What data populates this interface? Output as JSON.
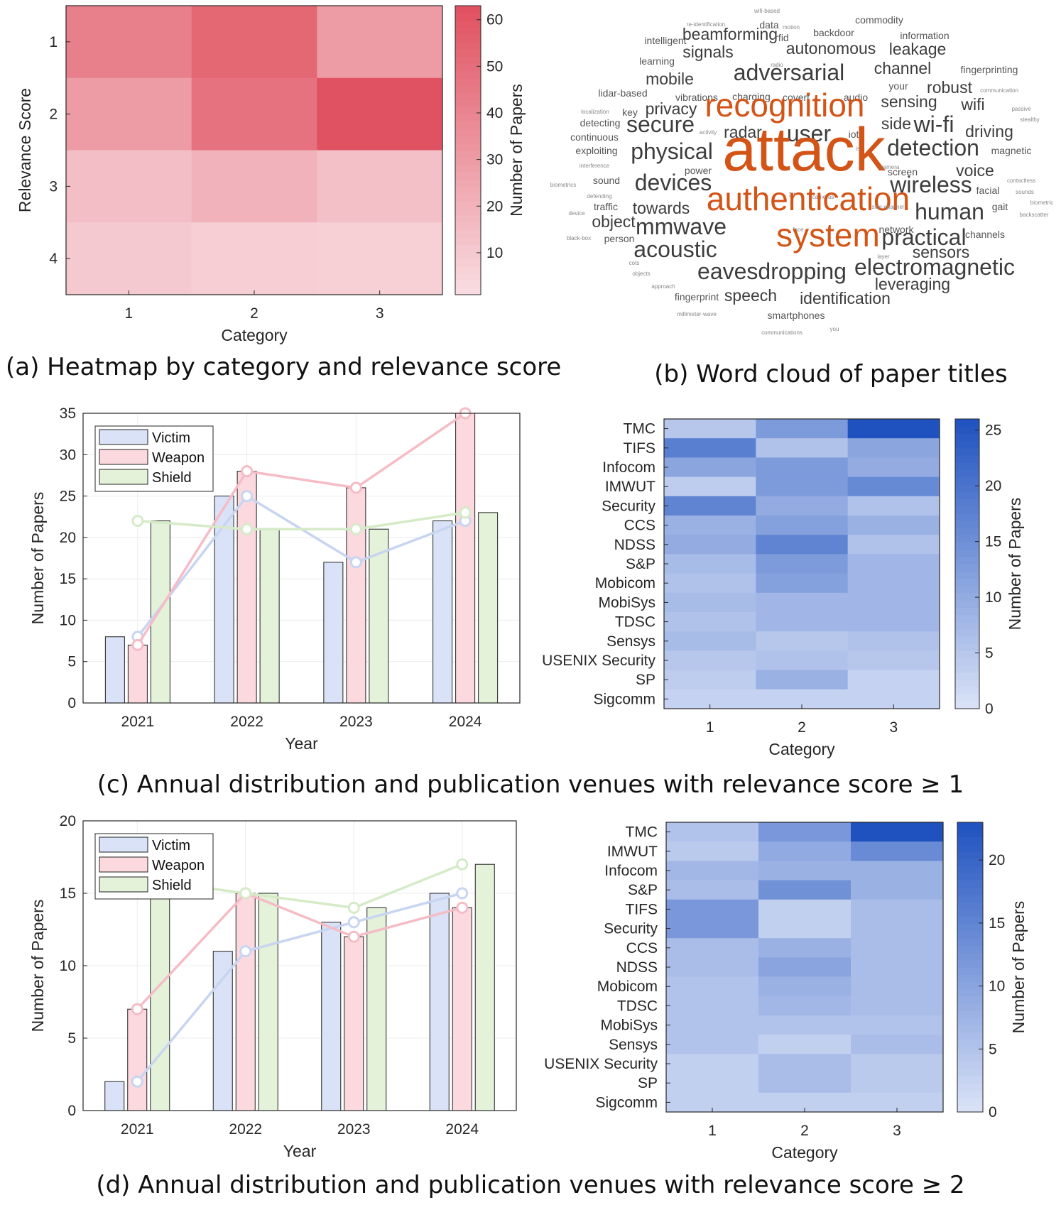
{
  "captions": {
    "a": "(a) Heatmap by category and relevance score",
    "b": "(b) Word cloud of paper titles",
    "c": "(c) Annual distribution and publication venues with relevance score ≥ 1",
    "d": "(d) Annual distribution and publication venues with relevance score ≥ 2"
  },
  "colors": {
    "red_low": "#f9dee3",
    "red_high": "#e0505f",
    "blue_low": "#dbe3f7",
    "blue_high": "#1f52bf",
    "victim": "#dae2f7",
    "weapon": "#fbd9df",
    "shield": "#e4f2da",
    "victim_line": "#c8d5f1",
    "weapon_line": "#f6bcc6",
    "shield_line": "#d5ebc8",
    "wc_orange": "#d35417",
    "wc_dark": "#3d3d3d",
    "wc_mid": "#555555",
    "wc_light": "#888888"
  },
  "chart_data": [
    {
      "id": "a",
      "type": "heatmap",
      "xlabel": "Category",
      "ylabel": "Relevance Score",
      "colorbar_label": "Number of Papers",
      "x_categories": [
        "1",
        "2",
        "3"
      ],
      "y_categories": [
        "1",
        "2",
        "3",
        "4"
      ],
      "values": [
        [
          42,
          53,
          30
        ],
        [
          30,
          48,
          62
        ],
        [
          15,
          20,
          14
        ],
        [
          10,
          8,
          7
        ]
      ],
      "clim": [
        1,
        63
      ],
      "colorbar_ticks": [
        10,
        20,
        30,
        40,
        50,
        60
      ]
    },
    {
      "id": "b",
      "type": "wordcloud",
      "words": [
        {
          "t": "wifi-based",
          "s": "s"
        },
        {
          "t": "re-identification",
          "s": "s"
        },
        {
          "t": "data",
          "s": "m"
        },
        {
          "t": "motion",
          "s": "s"
        },
        {
          "t": "commodity",
          "s": "m"
        },
        {
          "t": "intelligent",
          "s": "m"
        },
        {
          "t": "beamforming",
          "s": "l"
        },
        {
          "t": "rfid",
          "s": "m"
        },
        {
          "t": "backdoor",
          "s": "m"
        },
        {
          "t": "information",
          "s": "m"
        },
        {
          "t": "learning",
          "s": "m"
        },
        {
          "t": "signals",
          "s": "l"
        },
        {
          "t": "radio",
          "s": "s"
        },
        {
          "t": "autonomous",
          "s": "l"
        },
        {
          "t": "leakage",
          "s": "l"
        },
        {
          "t": "mobile",
          "s": "l"
        },
        {
          "t": "adversarial",
          "s": "xl"
        },
        {
          "t": "channel",
          "s": "l"
        },
        {
          "t": "fingerprinting",
          "s": "m"
        },
        {
          "t": "your",
          "s": "m"
        },
        {
          "t": "lidar-based",
          "s": "m"
        },
        {
          "t": "vibrations",
          "s": "m"
        },
        {
          "t": "charging",
          "s": "m"
        },
        {
          "t": "covert",
          "s": "m"
        },
        {
          "t": "audio",
          "s": "m"
        },
        {
          "t": "robust",
          "s": "l"
        },
        {
          "t": "communication",
          "s": "s"
        },
        {
          "t": "localization",
          "s": "s"
        },
        {
          "t": "key",
          "s": "m"
        },
        {
          "t": "privacy",
          "s": "l"
        },
        {
          "t": "recognition",
          "s": "o2"
        },
        {
          "t": "sensing",
          "s": "l"
        },
        {
          "t": "wifi",
          "s": "l"
        },
        {
          "t": "passive",
          "s": "s"
        },
        {
          "t": "detecting",
          "s": "m"
        },
        {
          "t": "secure",
          "s": "xl"
        },
        {
          "t": "stealthy",
          "s": "s"
        },
        {
          "t": "continuous",
          "s": "m"
        },
        {
          "t": "activity",
          "s": "s"
        },
        {
          "t": "radar",
          "s": "l"
        },
        {
          "t": "user",
          "s": "xl"
        },
        {
          "t": "iot",
          "s": "m"
        },
        {
          "t": "side",
          "s": "l"
        },
        {
          "t": "wi-fi",
          "s": "xl"
        },
        {
          "t": "driving",
          "s": "l"
        },
        {
          "t": "exploiting",
          "s": "m"
        },
        {
          "t": "physical",
          "s": "xl"
        },
        {
          "t": "attack",
          "s": "o1"
        },
        {
          "t": "is",
          "s": "s"
        },
        {
          "t": "detection",
          "s": "xl"
        },
        {
          "t": "magnetic",
          "s": "m"
        },
        {
          "t": "interference",
          "s": "s"
        },
        {
          "t": "power",
          "s": "m"
        },
        {
          "t": "camera",
          "s": "s"
        },
        {
          "t": "screen",
          "s": "m"
        },
        {
          "t": "voice",
          "s": "l"
        },
        {
          "t": "biometrics",
          "s": "s"
        },
        {
          "t": "sound",
          "s": "m"
        },
        {
          "t": "devices",
          "s": "xl"
        },
        {
          "t": "wireless",
          "s": "xl"
        },
        {
          "t": "contactless",
          "s": "s"
        },
        {
          "t": "facial",
          "s": "m"
        },
        {
          "t": "sounds",
          "s": "s"
        },
        {
          "t": "defending",
          "s": "s"
        },
        {
          "t": "3d",
          "s": "s"
        },
        {
          "t": "cameras",
          "s": "s"
        },
        {
          "t": "authentication",
          "s": "o2"
        },
        {
          "t": "biometric",
          "s": "s"
        },
        {
          "t": "traffic",
          "s": "m"
        },
        {
          "t": "towards",
          "s": "l"
        },
        {
          "t": "side-channel",
          "s": "s"
        },
        {
          "t": "gait",
          "s": "m"
        },
        {
          "t": "device",
          "s": "s"
        },
        {
          "t": "human",
          "s": "xl"
        },
        {
          "t": "backscatter",
          "s": "s"
        },
        {
          "t": "object",
          "s": "l"
        },
        {
          "t": "mmwave",
          "s": "xl"
        },
        {
          "t": "face",
          "s": "s"
        },
        {
          "t": "network",
          "s": "m"
        },
        {
          "t": "black-box",
          "s": "s"
        },
        {
          "t": "person",
          "s": "m"
        },
        {
          "t": "system",
          "s": "o2"
        },
        {
          "t": "practical",
          "s": "xl"
        },
        {
          "t": "channels",
          "s": "m"
        },
        {
          "t": "acoustic",
          "s": "xl"
        },
        {
          "t": "layer",
          "s": "s"
        },
        {
          "t": "sensors",
          "s": "l"
        },
        {
          "t": "cots",
          "s": "s"
        },
        {
          "t": "objects",
          "s": "s"
        },
        {
          "t": "eavesdropping",
          "s": "xl"
        },
        {
          "t": "electromagnetic",
          "s": "xl"
        },
        {
          "t": "approach",
          "s": "s"
        },
        {
          "t": "leveraging",
          "s": "l"
        },
        {
          "t": "fingerprint",
          "s": "m"
        },
        {
          "t": "speech",
          "s": "l"
        },
        {
          "t": "identification",
          "s": "l"
        },
        {
          "t": "millimeter-wave",
          "s": "s"
        },
        {
          "t": "smartphones",
          "s": "m"
        },
        {
          "t": "you",
          "s": "s"
        },
        {
          "t": "communications",
          "s": "s"
        }
      ]
    },
    {
      "id": "c-bar",
      "type": "bar",
      "xlabel": "Year",
      "ylabel": "Number of Papers",
      "categories": [
        "2021",
        "2022",
        "2023",
        "2024"
      ],
      "ylim": [
        0,
        35
      ],
      "yticks": [
        0,
        5,
        10,
        15,
        20,
        25,
        30,
        35
      ],
      "legend_position": "top-left",
      "series": [
        {
          "name": "Victim",
          "values": [
            8,
            25,
            17,
            22
          ]
        },
        {
          "name": "Weapon",
          "values": [
            7,
            28,
            26,
            35
          ]
        },
        {
          "name": "Shield",
          "values": [
            22,
            21,
            21,
            23
          ]
        }
      ]
    },
    {
      "id": "c-heat",
      "type": "heatmap",
      "xlabel": "Category",
      "ylabel": "",
      "colorbar_label": "Number of Papers",
      "x_categories": [
        "1",
        "2",
        "3"
      ],
      "y_categories": [
        "TMC",
        "TIFS",
        "Infocom",
        "IMWUT",
        "Security",
        "CCS",
        "NDSS",
        "S&P",
        "Mobicom",
        "MobiSys",
        "TDSC",
        "Sensys",
        "USENIX Security",
        "SP",
        "Sigcomm"
      ],
      "values": [
        [
          5,
          13,
          26
        ],
        [
          18,
          6,
          11
        ],
        [
          11,
          13,
          10
        ],
        [
          4,
          13,
          16
        ],
        [
          17,
          10,
          6
        ],
        [
          9,
          12,
          9
        ],
        [
          10,
          17,
          6
        ],
        [
          7,
          13,
          8
        ],
        [
          6,
          12,
          8
        ],
        [
          7,
          8,
          8
        ],
        [
          6,
          8,
          8
        ],
        [
          7,
          5,
          6
        ],
        [
          5,
          6,
          5
        ],
        [
          4,
          9,
          3
        ],
        [
          3,
          3,
          3
        ]
      ],
      "clim": [
        0,
        26
      ],
      "colorbar_ticks": [
        0,
        5,
        10,
        15,
        20,
        25
      ]
    },
    {
      "id": "d-bar",
      "type": "bar",
      "xlabel": "Year",
      "ylabel": "Number of Papers",
      "categories": [
        "2021",
        "2022",
        "2023",
        "2024"
      ],
      "ylim": [
        0,
        20
      ],
      "yticks": [
        0,
        5,
        10,
        15,
        20
      ],
      "legend_position": "top-left",
      "series": [
        {
          "name": "Victim",
          "values": [
            2,
            11,
            13,
            15
          ]
        },
        {
          "name": "Weapon",
          "values": [
            7,
            15,
            12,
            14
          ]
        },
        {
          "name": "Shield",
          "values": [
            16,
            15,
            14,
            17
          ]
        }
      ]
    },
    {
      "id": "d-heat",
      "type": "heatmap",
      "xlabel": "Category",
      "ylabel": "",
      "colorbar_label": "Number of Papers",
      "x_categories": [
        "1",
        "2",
        "3"
      ],
      "y_categories": [
        "TMC",
        "IMWUT",
        "Infocom",
        "S&P",
        "TIFS",
        "Security",
        "CCS",
        "NDSS",
        "Mobicom",
        "TDSC",
        "MobiSys",
        "Sensys",
        "USENIX Security",
        "SP",
        "Sigcomm"
      ],
      "values": [
        [
          5,
          12,
          23
        ],
        [
          4,
          9,
          14
        ],
        [
          7,
          8,
          8
        ],
        [
          6,
          13,
          8
        ],
        [
          12,
          3,
          6
        ],
        [
          12,
          3,
          6
        ],
        [
          6,
          8,
          6
        ],
        [
          6,
          10,
          6
        ],
        [
          5,
          8,
          6
        ],
        [
          5,
          7,
          6
        ],
        [
          5,
          5,
          5
        ],
        [
          5,
          3,
          6
        ],
        [
          3,
          6,
          4
        ],
        [
          3,
          6,
          4
        ],
        [
          3,
          3,
          3
        ]
      ],
      "clim": [
        0,
        23
      ],
      "colorbar_ticks": [
        0,
        5,
        10,
        15,
        20
      ]
    }
  ]
}
